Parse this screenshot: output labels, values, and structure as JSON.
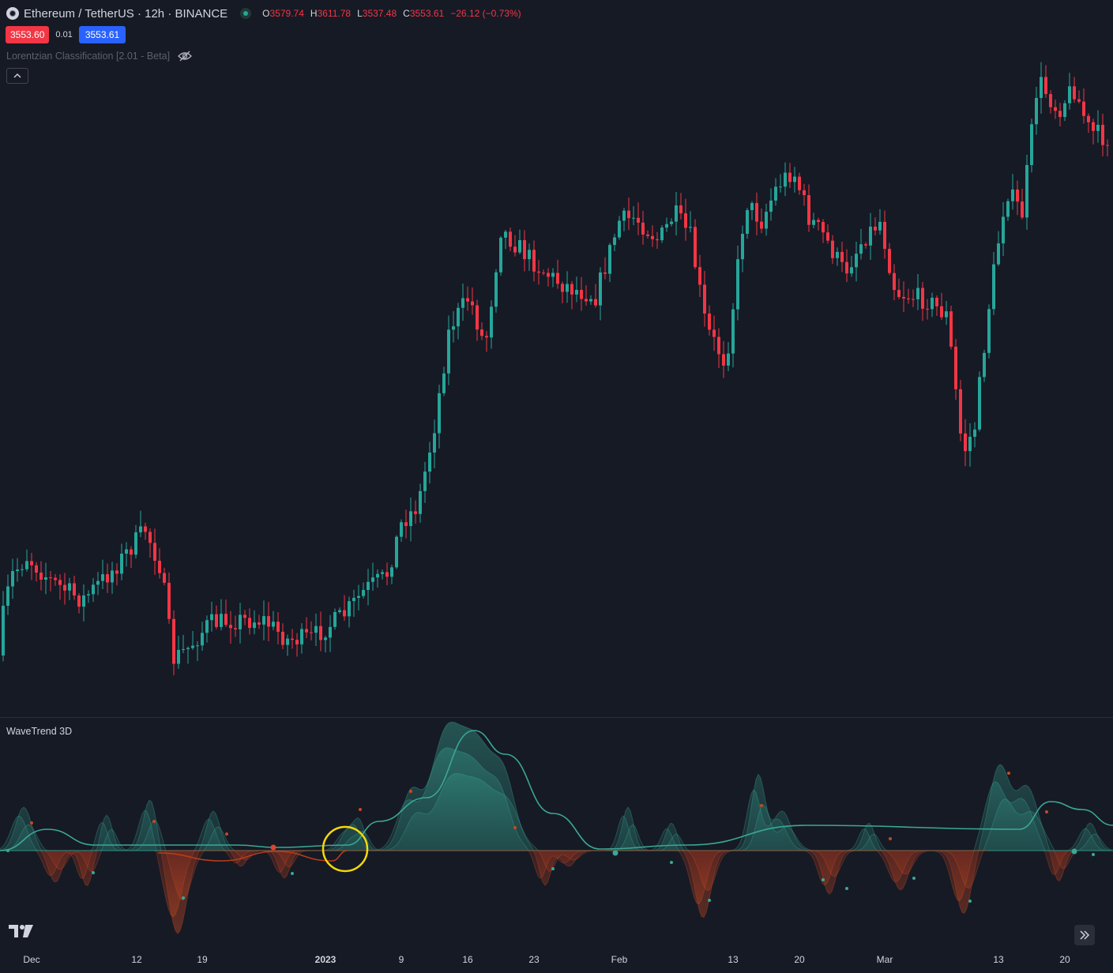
{
  "header": {
    "symbol": "Ethereum / TetherUS · 12h · BINANCE",
    "ohlc": {
      "o_label": "O",
      "o": "3579.74",
      "h_label": "H",
      "h": "3611.78",
      "l_label": "L",
      "l": "3537.48",
      "c_label": "C",
      "c": "3553.61",
      "change": "−26.12 (−0.73%)"
    }
  },
  "trade": {
    "bid": "3553.60",
    "spread": "0.01",
    "ask": "3553.61"
  },
  "indicator": {
    "name": "Lorentzian Classification [2.01 - Beta]"
  },
  "pane": {
    "label": "WaveTrend 3D"
  },
  "time_axis": {
    "ticks": [
      {
        "label": "Dec"
      },
      {
        "label": "12"
      },
      {
        "label": "19"
      },
      {
        "label": "2023"
      },
      {
        "label": "9"
      },
      {
        "label": "16"
      },
      {
        "label": "23"
      },
      {
        "label": "Feb"
      },
      {
        "label": "13"
      },
      {
        "label": "20"
      },
      {
        "label": "Mar"
      },
      {
        "label": "13"
      },
      {
        "label": "20"
      }
    ]
  },
  "colors": {
    "up": "#26a69a",
    "down": "#f23645",
    "bg": "#161a25",
    "highlight": "#f5d90a"
  },
  "icons": {
    "symbol": "ethereum-icon",
    "visibility": "eye-slash-icon",
    "collapse": "chevron-up-icon",
    "logo": "tradingview-logo",
    "scroll": "double-chevron-right-icon"
  }
}
